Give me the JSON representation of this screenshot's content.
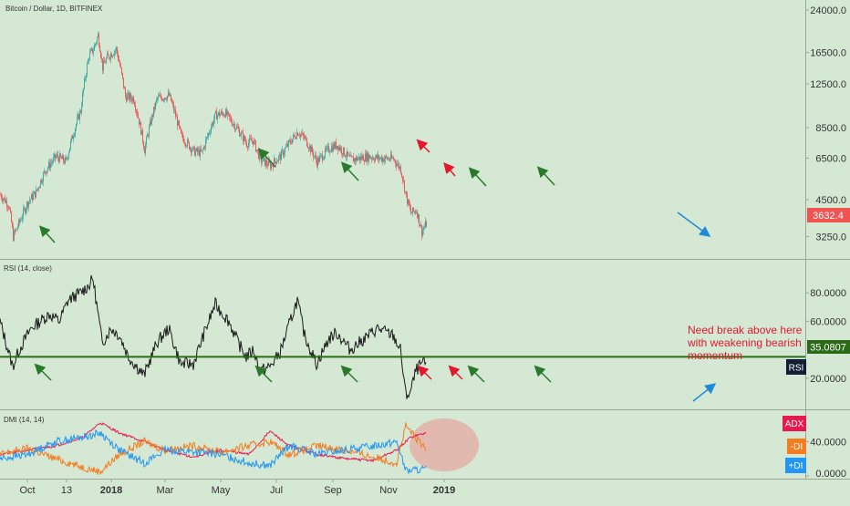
{
  "chart_data": [
    {
      "type": "candlestick",
      "title": "Bitcoin / Dollar, 1D, BITFINEX",
      "y_scale": "log",
      "ylim": [
        2800,
        25000
      ],
      "y_ticks": [
        "24000.0",
        "16500.0",
        "12500.0",
        "8500.0",
        "6500.0",
        "4500.0",
        "3250.0"
      ],
      "last_price": "3632.4",
      "series": [
        {
          "name": "close",
          "x": [
            "2017-09-01",
            "2017-09-10",
            "2017-09-15",
            "2017-09-22",
            "2017-10-01",
            "2017-10-10",
            "2017-10-20",
            "2017-11-01",
            "2017-11-12",
            "2017-11-20",
            "2017-11-28",
            "2017-12-07",
            "2017-12-12",
            "2017-12-17",
            "2017-12-22",
            "2017-12-27",
            "2018-01-06",
            "2018-01-16",
            "2018-01-25",
            "2018-02-06",
            "2018-02-20",
            "2018-03-05",
            "2018-03-18",
            "2018-04-01",
            "2018-04-10",
            "2018-04-25",
            "2018-05-05",
            "2018-05-20",
            "2018-05-29",
            "2018-06-05",
            "2018-06-13",
            "2018-06-24",
            "2018-07-05",
            "2018-07-24",
            "2018-08-01",
            "2018-08-14",
            "2018-08-28",
            "2018-09-05",
            "2018-09-20",
            "2018-10-10",
            "2018-10-20",
            "2018-11-06",
            "2018-11-14",
            "2018-11-20",
            "2018-11-25",
            "2018-12-01",
            "2018-12-07",
            "2018-12-12"
          ],
          "values": [
            4700,
            4300,
            3250,
            3700,
            4400,
            4800,
            5800,
            6600,
            6300,
            8100,
            9900,
            16000,
            17000,
            19200,
            14500,
            15800,
            17000,
            11200,
            11000,
            7000,
            11000,
            11300,
            7900,
            6900,
            6800,
            9500,
            9700,
            8300,
            7400,
            7600,
            6400,
            6100,
            6600,
            8200,
            7700,
            6300,
            7100,
            7300,
            6400,
            6600,
            6500,
            6450,
            5900,
            4600,
            4000,
            4100,
            3400,
            3632.4
          ]
        }
      ]
    },
    {
      "type": "line",
      "title": "RSI (14, close)",
      "ylim": [
        0,
        100
      ],
      "y_ticks": [
        "80.0000",
        "60.0000",
        "35.0807",
        "20.0000"
      ],
      "badge": "RSI",
      "support_level": 35,
      "annotation": "Need break above here\nwith weakening bearish\nmomentum",
      "series": [
        {
          "name": "RSI",
          "x": [
            "2017-09-01",
            "2017-09-15",
            "2017-09-22",
            "2017-10-05",
            "2017-10-25",
            "2017-11-05",
            "2017-11-15",
            "2017-11-28",
            "2017-12-07",
            "2017-12-12",
            "2017-12-22",
            "2018-01-01",
            "2018-01-10",
            "2018-01-20",
            "2018-02-06",
            "2018-02-20",
            "2018-03-05",
            "2018-03-18",
            "2018-04-01",
            "2018-04-12",
            "2018-04-25",
            "2018-05-10",
            "2018-05-20",
            "2018-05-29",
            "2018-06-06",
            "2018-06-13",
            "2018-06-24",
            "2018-07-05",
            "2018-07-24",
            "2018-08-01",
            "2018-08-14",
            "2018-08-28",
            "2018-09-05",
            "2018-09-20",
            "2018-10-10",
            "2018-10-20",
            "2018-11-06",
            "2018-11-14",
            "2018-11-20",
            "2018-11-25",
            "2018-12-01",
            "2018-12-07",
            "2018-12-12"
          ],
          "values": [
            60,
            28,
            40,
            55,
            65,
            60,
            75,
            80,
            85,
            90,
            45,
            55,
            50,
            35,
            22,
            45,
            55,
            30,
            30,
            50,
            72,
            60,
            45,
            35,
            40,
            25,
            28,
            38,
            75,
            50,
            30,
            48,
            52,
            40,
            50,
            55,
            50,
            40,
            8,
            10,
            25,
            30,
            30
          ]
        }
      ]
    },
    {
      "type": "line",
      "title": "DMI (14, 14)",
      "ylim": [
        0,
        70
      ],
      "y_ticks": [
        "40.0000",
        "0.0000"
      ],
      "series": [
        {
          "name": "ADX",
          "color": "#e8194f",
          "x": [
            "2017-09-01",
            "2017-10-01",
            "2017-11-01",
            "2017-12-01",
            "2017-12-20",
            "2018-01-10",
            "2018-02-06",
            "2018-03-01",
            "2018-04-01",
            "2018-05-01",
            "2018-06-01",
            "2018-06-24",
            "2018-07-15",
            "2018-08-15",
            "2018-09-15",
            "2018-10-15",
            "2018-11-10",
            "2018-11-25",
            "2018-12-12"
          ],
          "values": [
            25,
            30,
            35,
            45,
            62,
            50,
            40,
            30,
            22,
            30,
            25,
            52,
            35,
            25,
            20,
            18,
            30,
            45,
            50
          ]
        },
        {
          "name": "-DI",
          "color": "#f57c1f",
          "x": [
            "2017-09-01",
            "2017-10-01",
            "2017-11-01",
            "2017-12-01",
            "2017-12-20",
            "2018-01-10",
            "2018-02-06",
            "2018-03-01",
            "2018-04-01",
            "2018-05-01",
            "2018-06-01",
            "2018-06-24",
            "2018-07-15",
            "2018-08-15",
            "2018-09-15",
            "2018-10-15",
            "2018-11-10",
            "2018-11-20",
            "2018-12-12"
          ],
          "values": [
            25,
            32,
            20,
            10,
            5,
            25,
            40,
            30,
            35,
            28,
            35,
            40,
            25,
            35,
            30,
            22,
            15,
            58,
            30
          ]
        },
        {
          "name": "+DI",
          "color": "#2196f3",
          "x": [
            "2017-09-01",
            "2017-10-01",
            "2017-11-01",
            "2017-12-01",
            "2017-12-20",
            "2018-01-10",
            "2018-02-06",
            "2018-03-01",
            "2018-04-01",
            "2018-05-01",
            "2018-06-01",
            "2018-06-24",
            "2018-07-15",
            "2018-08-15",
            "2018-09-15",
            "2018-10-15",
            "2018-11-10",
            "2018-11-20",
            "2018-12-12"
          ],
          "values": [
            20,
            25,
            40,
            45,
            50,
            30,
            15,
            30,
            28,
            25,
            15,
            12,
            35,
            25,
            30,
            35,
            40,
            6,
            8
          ]
        }
      ]
    }
  ],
  "x_ticks": [
    "Oct",
    "13",
    "2018",
    "Mar",
    "May",
    "Jul",
    "Sep",
    "Nov",
    "2019"
  ]
}
